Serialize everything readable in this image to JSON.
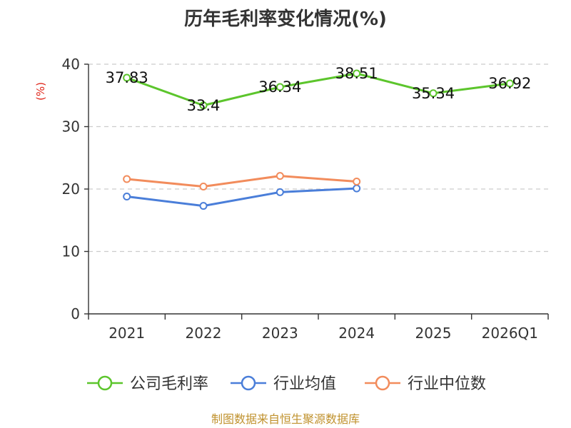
{
  "chart_data": {
    "type": "line",
    "title": "历年毛利率变化情况(%)",
    "ylabel": "(%)",
    "categories": [
      "2021",
      "2022",
      "2023",
      "2024",
      "2025",
      "2026Q1"
    ],
    "yticks": [
      "0",
      "10",
      "20",
      "30",
      "40"
    ],
    "ylim": [
      0,
      40
    ],
    "grid": true,
    "legend_position": "bottom",
    "series": [
      {
        "name": "公司毛利率",
        "color": "#5cc52c",
        "values": [
          37.83,
          33.4,
          36.34,
          38.51,
          35.34,
          36.92
        ],
        "labels": [
          "37.83",
          "33.4",
          "36.34",
          "38.51",
          "35.34",
          "36.92"
        ]
      },
      {
        "name": "行业均值",
        "color": "#4a7ed9",
        "values": [
          18.8,
          17.3,
          19.5,
          20.1,
          null,
          null
        ]
      },
      {
        "name": "行业中位数",
        "color": "#f28c5c",
        "values": [
          21.6,
          20.4,
          22.1,
          21.2,
          null,
          null
        ]
      }
    ]
  },
  "footer": "制图数据来自恒生聚源数据库"
}
